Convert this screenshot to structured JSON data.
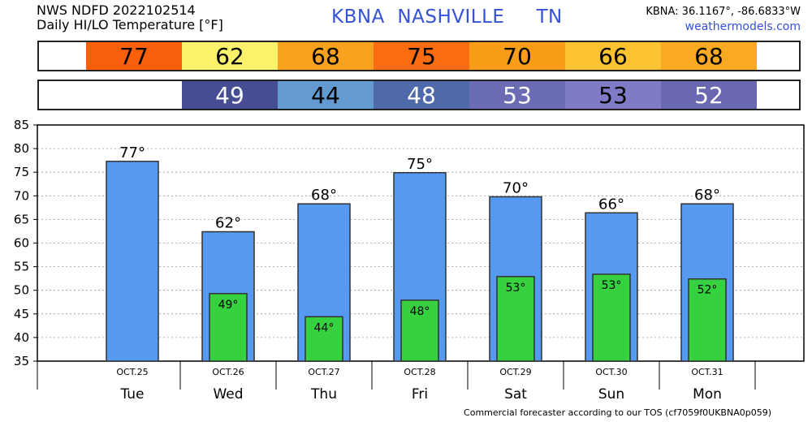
{
  "header": {
    "line1": "NWS NDFD 2022102514",
    "line2": "Daily HI/LO Temperature [°F]",
    "station": "KBNA  NASHVILLE     TN",
    "coords": "KBNA: 36.1167°, -86.6833°W",
    "site": "weathermodels.com"
  },
  "strips": {
    "hi": [
      {
        "text": "",
        "color": "#ffffff",
        "text_color": "#000000"
      },
      {
        "text": "77",
        "color": "#fa5f0c",
        "text_color": "#000000"
      },
      {
        "text": "62",
        "color": "#fbf16b",
        "text_color": "#000000"
      },
      {
        "text": "68",
        "color": "#f9a21f",
        "text_color": "#000000"
      },
      {
        "text": "75",
        "color": "#fa6c10",
        "text_color": "#000000"
      },
      {
        "text": "70",
        "color": "#f99d18",
        "text_color": "#000000"
      },
      {
        "text": "66",
        "color": "#fbc232",
        "text_color": "#000000"
      },
      {
        "text": "68",
        "color": "#f9aa22",
        "text_color": "#000000"
      },
      {
        "text": "",
        "color": "#ffffff",
        "text_color": "#000000"
      }
    ],
    "lo": [
      {
        "text": "",
        "color": "#ffffff",
        "text_color": "#000000"
      },
      {
        "text": "49",
        "color": "#474d93",
        "text_color": "#ffffff"
      },
      {
        "text": "44",
        "color": "#639ad0",
        "text_color": "#000000"
      },
      {
        "text": "48",
        "color": "#4f6aab",
        "text_color": "#ffffff"
      },
      {
        "text": "53",
        "color": "#6c6cb4",
        "text_color": "#ffffff"
      },
      {
        "text": "53",
        "color": "#7f7bc6",
        "text_color": "#000000"
      },
      {
        "text": "52",
        "color": "#6b68b2",
        "text_color": "#ffffff"
      },
      {
        "text": "",
        "color": "#ffffff",
        "text_color": "#000000"
      }
    ]
  },
  "chart_data": {
    "type": "bar",
    "categories": [
      "Tue",
      "Wed",
      "Thu",
      "Fri",
      "Sat",
      "Sun",
      "Mon"
    ],
    "dates": [
      "OCT.25",
      "OCT.26",
      "OCT.27",
      "OCT.28",
      "OCT.29",
      "OCT.30",
      "OCT.31"
    ],
    "series": [
      {
        "values": [
          77.3,
          62.4,
          68.3,
          74.9,
          69.8,
          66.4,
          68.3
        ],
        "labels": [
          "77°",
          "62°",
          "68°",
          "75°",
          "70°",
          "66°",
          "68°"
        ],
        "color": "#5599f0"
      },
      {
        "values": [
          null,
          49.3,
          44.4,
          47.9,
          52.9,
          53.4,
          52.4
        ],
        "labels": [
          "",
          "49°",
          "44°",
          "48°",
          "53°",
          "53°",
          "52°"
        ],
        "color": "#35d13e"
      }
    ],
    "ylim": [
      35,
      85
    ],
    "yticks": [
      35,
      40,
      45,
      50,
      55,
      60,
      65,
      70,
      75,
      80,
      85
    ],
    "grid": true
  },
  "footer": "Commercial forecaster according to our TOS (cf7059f0UKBNA0p059)"
}
